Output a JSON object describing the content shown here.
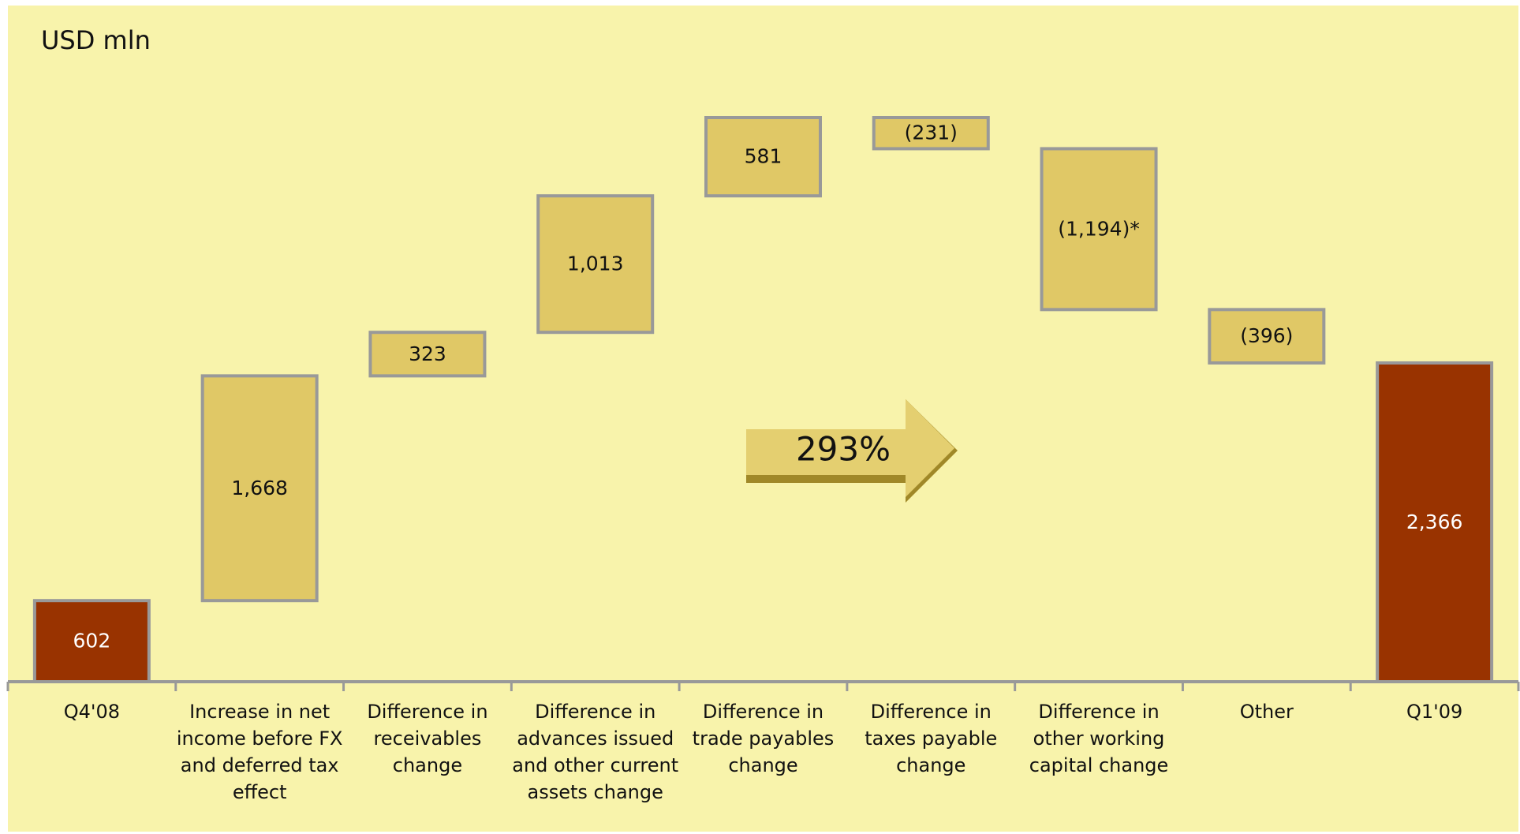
{
  "chart_data": {
    "type": "waterfall",
    "title": "USD mln",
    "categories": [
      "Q4'08",
      "Increase in net income before FX and deferred tax effect",
      "Difference in receivables change",
      "Difference in advances issued and other current assets change",
      "Difference in trade payables change",
      "Difference in taxes payable change",
      "Difference in other working capital change",
      "Other",
      "Q1'09"
    ],
    "values": [
      602,
      1668,
      323,
      1013,
      581,
      -231,
      -1194,
      -396,
      2366
    ],
    "value_labels": [
      "602",
      "1,668",
      "323",
      "1,013",
      "581",
      "(231)",
      "(1,194)*",
      "(396)",
      "2,366"
    ],
    "color": "#e0c866",
    "total_color": "#993300",
    "annotation": "293%"
  }
}
